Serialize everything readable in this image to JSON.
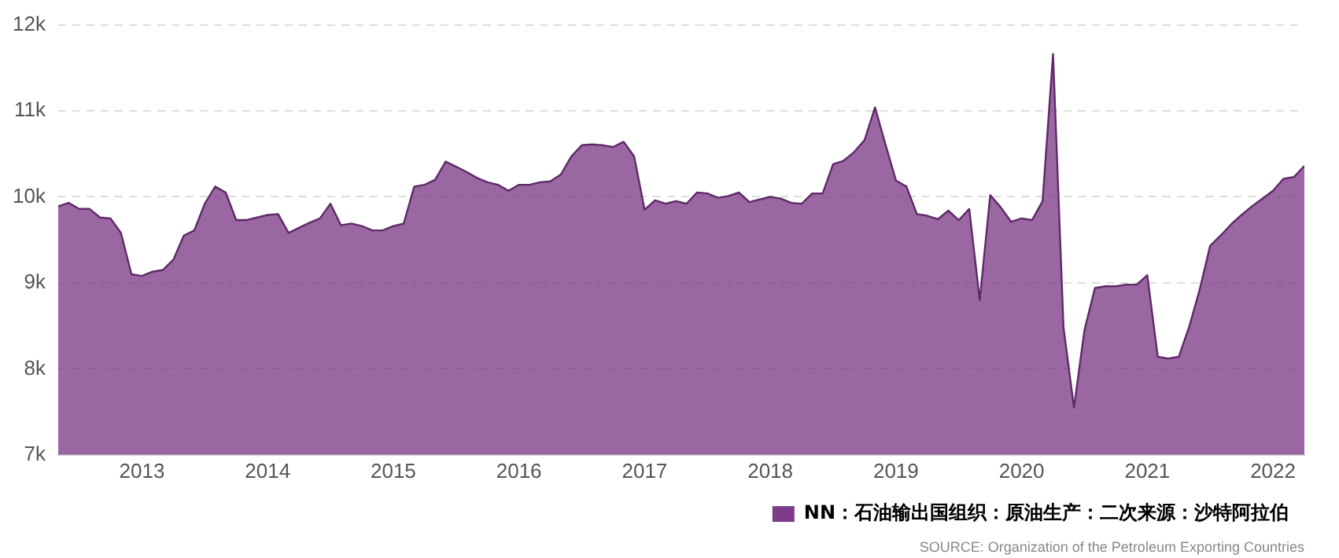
{
  "chart_data": {
    "type": "area",
    "x": [
      "2012-05",
      "2012-06",
      "2012-07",
      "2012-08",
      "2012-09",
      "2012-10",
      "2012-11",
      "2012-12",
      "2013-01",
      "2013-02",
      "2013-03",
      "2013-04",
      "2013-05",
      "2013-06",
      "2013-07",
      "2013-08",
      "2013-09",
      "2013-10",
      "2013-11",
      "2013-12",
      "2014-01",
      "2014-02",
      "2014-03",
      "2014-04",
      "2014-05",
      "2014-06",
      "2014-07",
      "2014-08",
      "2014-09",
      "2014-10",
      "2014-11",
      "2014-12",
      "2015-01",
      "2015-02",
      "2015-03",
      "2015-04",
      "2015-05",
      "2015-06",
      "2015-07",
      "2015-08",
      "2015-09",
      "2015-10",
      "2015-11",
      "2015-12",
      "2016-01",
      "2016-02",
      "2016-03",
      "2016-04",
      "2016-05",
      "2016-06",
      "2016-07",
      "2016-08",
      "2016-09",
      "2016-10",
      "2016-11",
      "2016-12",
      "2017-01",
      "2017-02",
      "2017-03",
      "2017-04",
      "2017-05",
      "2017-06",
      "2017-07",
      "2017-08",
      "2017-09",
      "2017-10",
      "2017-11",
      "2017-12",
      "2018-01",
      "2018-02",
      "2018-03",
      "2018-04",
      "2018-05",
      "2018-06",
      "2018-07",
      "2018-08",
      "2018-09",
      "2018-10",
      "2018-11",
      "2018-12",
      "2019-01",
      "2019-02",
      "2019-03",
      "2019-04",
      "2019-05",
      "2019-06",
      "2019-07",
      "2019-08",
      "2019-09",
      "2019-10",
      "2019-11",
      "2019-12",
      "2020-01",
      "2020-02",
      "2020-03",
      "2020-04",
      "2020-05",
      "2020-06",
      "2020-07",
      "2020-08",
      "2020-09",
      "2020-10",
      "2020-11",
      "2020-12",
      "2021-01",
      "2021-02",
      "2021-03",
      "2021-04",
      "2021-05",
      "2021-06",
      "2021-07",
      "2021-08",
      "2021-09",
      "2021-10",
      "2021-11",
      "2021-12",
      "2022-01",
      "2022-02",
      "2022-03",
      "2022-04"
    ],
    "series": [
      {
        "name": "NN：石油输出国组织：原油生产：二次来源：沙特阿拉伯",
        "color": "#7d3c89",
        "values": [
          9890,
          9930,
          9860,
          9860,
          9760,
          9750,
          9580,
          9100,
          9080,
          9130,
          9150,
          9270,
          9550,
          9610,
          9920,
          10120,
          10050,
          9730,
          9730,
          9760,
          9790,
          9800,
          9580,
          9640,
          9700,
          9750,
          9920,
          9670,
          9690,
          9660,
          9610,
          9610,
          9660,
          9690,
          10120,
          10140,
          10200,
          10410,
          10350,
          10290,
          10220,
          10170,
          10140,
          10070,
          10140,
          10140,
          10170,
          10180,
          10260,
          10470,
          10600,
          10610,
          10600,
          10580,
          10640,
          10470,
          9850,
          9960,
          9920,
          9950,
          9920,
          10050,
          10040,
          9990,
          10010,
          10050,
          9940,
          9970,
          10000,
          9980,
          9930,
          9920,
          10040,
          10040,
          10380,
          10420,
          10520,
          10660,
          11040,
          10610,
          10190,
          10120,
          9800,
          9780,
          9740,
          9840,
          9730,
          9860,
          8800,
          10020,
          9880,
          9710,
          9750,
          9730,
          9950,
          11660,
          8480,
          7550,
          8450,
          8940,
          8960,
          8960,
          8980,
          8980,
          9090,
          8140,
          8120,
          8140,
          8490,
          8920,
          9430,
          9550,
          9680,
          9790,
          9890,
          9980,
          10070,
          10210,
          10230,
          10360
        ]
      }
    ],
    "xlim": [
      "2012-05",
      "2022-04"
    ],
    "xticks": [
      "2013",
      "2014",
      "2015",
      "2016",
      "2017",
      "2018",
      "2019",
      "2020",
      "2021",
      "2022"
    ],
    "ylim": [
      7000,
      12000
    ],
    "yticks": [
      {
        "value": 7000,
        "label": "7k"
      },
      {
        "value": 8000,
        "label": "8k"
      },
      {
        "value": 9000,
        "label": "9k"
      },
      {
        "value": 10000,
        "label": "10k"
      },
      {
        "value": 11000,
        "label": "11k"
      },
      {
        "value": 12000,
        "label": "12k"
      }
    ],
    "grid": "y",
    "legend": "bottom right",
    "annotations": [
      "SOURCE: Organization of the Petroleum Exporting Countries"
    ]
  }
}
